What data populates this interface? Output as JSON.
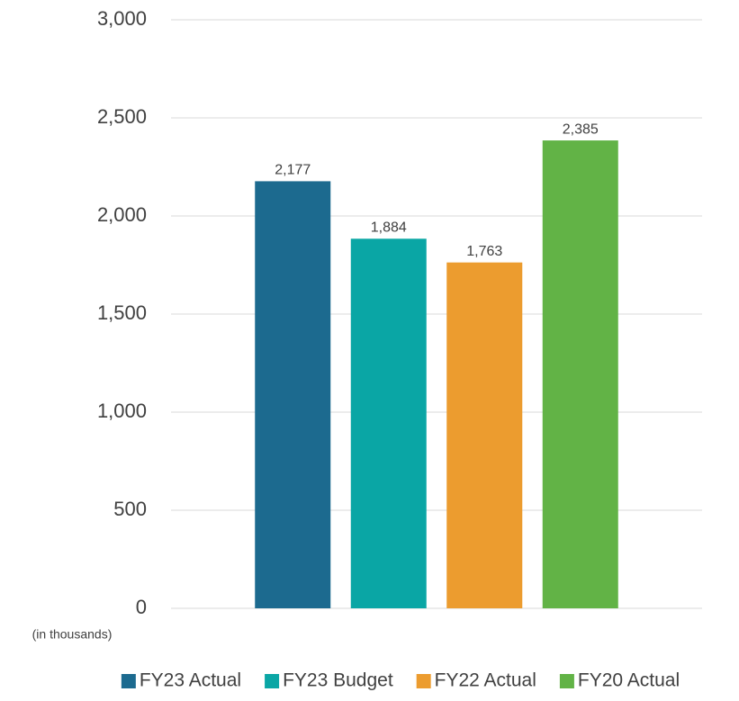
{
  "chart_data": {
    "type": "bar",
    "categories": [
      null
    ],
    "series": [
      {
        "name": "FY23 Actual",
        "color": "#1c6a8f",
        "values": [
          2177
        ],
        "value_labels": [
          "2,177"
        ]
      },
      {
        "name": "FY23 Budget",
        "color": "#0aa6a5",
        "values": [
          1884
        ],
        "value_labels": [
          "1,884"
        ]
      },
      {
        "name": "FY22 Actual",
        "color": "#ec9c2f",
        "values": [
          1763
        ],
        "value_labels": [
          "1,763"
        ]
      },
      {
        "name": "FY20 Actual",
        "color": "#62b346",
        "values": [
          2385
        ],
        "value_labels": [
          "2,385"
        ]
      }
    ],
    "ylim": [
      0,
      3000
    ],
    "yticks": [
      0,
      {
        "value": 500,
        "label": "500"
      },
      {
        "value": 1000,
        "label": "1,000"
      },
      {
        "value": 1500,
        "label": "1,500"
      },
      {
        "value": 2000,
        "label": "2,000"
      },
      {
        "value": 2500,
        "label": "2,500"
      },
      {
        "value": 3000,
        "label": "3,000"
      }
    ],
    "annotation": "(in thousands)",
    "grid": true,
    "legend": "bottom"
  }
}
